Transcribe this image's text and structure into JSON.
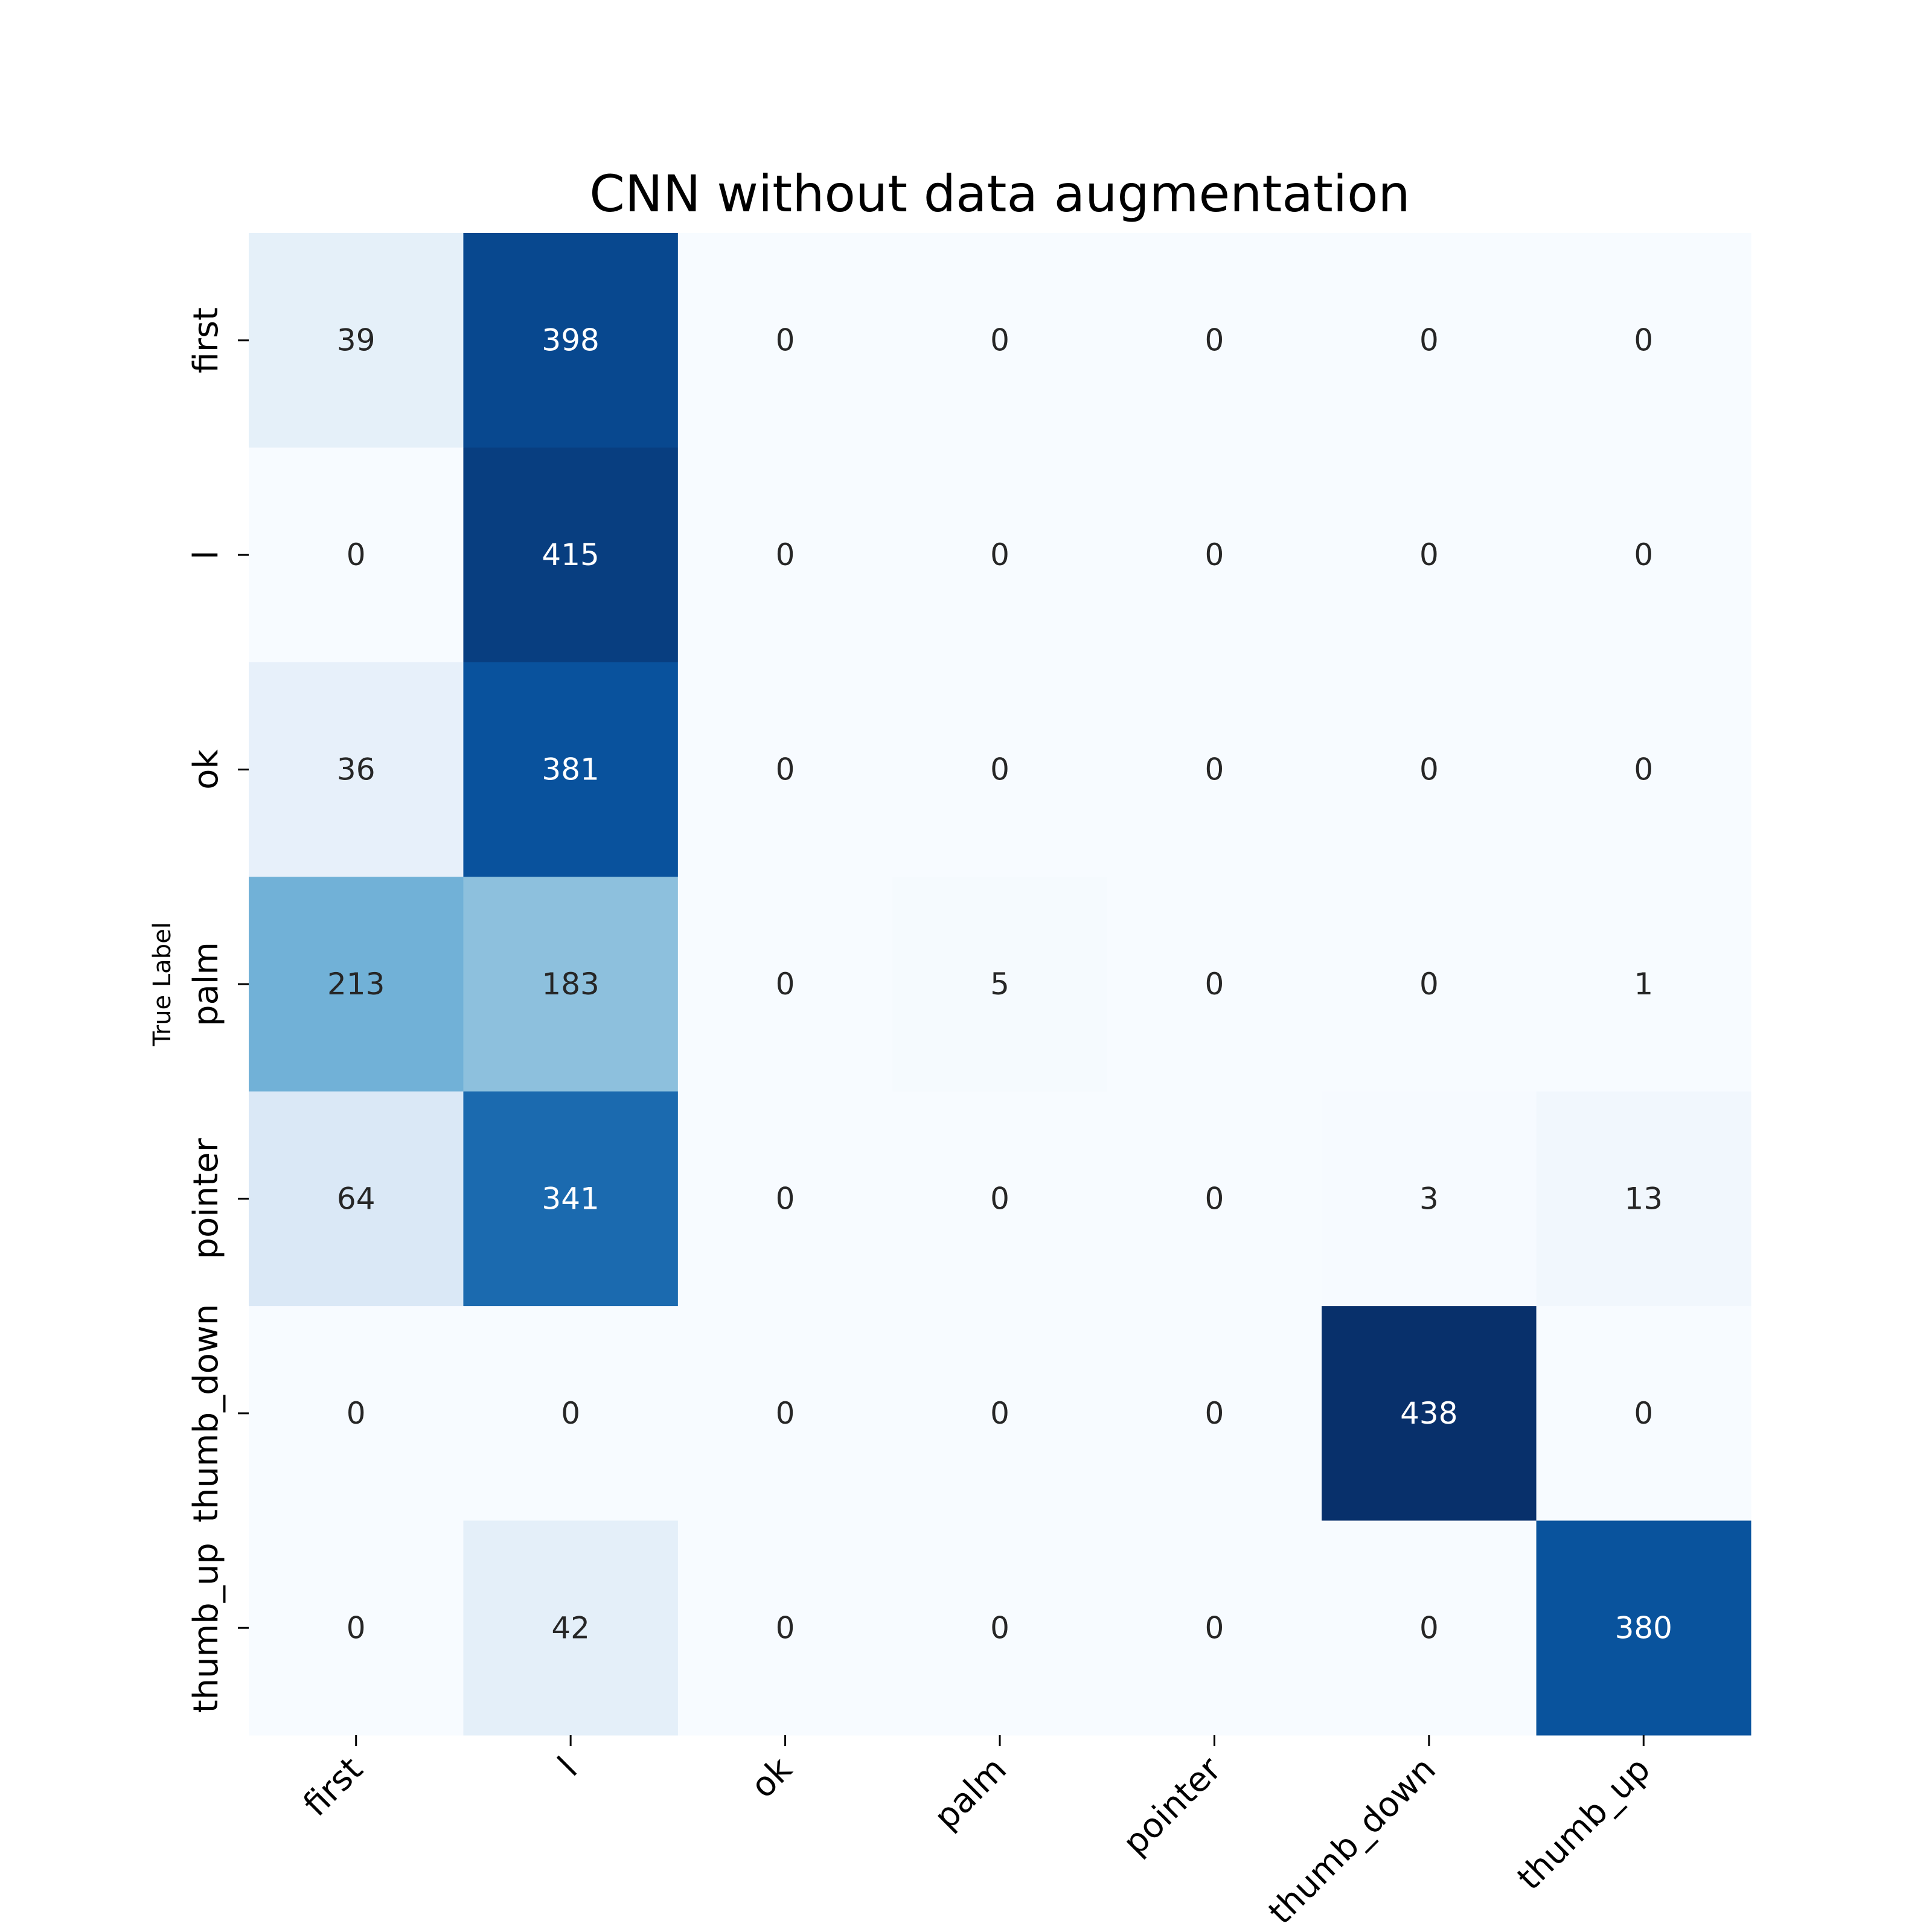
{
  "chart_data": {
    "type": "heatmap",
    "title": "CNN without data augmentation",
    "ylabel": "True Label",
    "xlabel": "",
    "row_labels": [
      "first",
      "l",
      "ok",
      "palm",
      "pointer",
      "thumb_down",
      "thumb_up"
    ],
    "col_labels": [
      "first",
      "l",
      "ok",
      "palm",
      "pointer",
      "thumb_down",
      "thumb_up"
    ],
    "values": [
      [
        39,
        398,
        0,
        0,
        0,
        0,
        0
      ],
      [
        0,
        415,
        0,
        0,
        0,
        0,
        0
      ],
      [
        36,
        381,
        0,
        0,
        0,
        0,
        0
      ],
      [
        213,
        183,
        0,
        5,
        0,
        0,
        1
      ],
      [
        64,
        341,
        0,
        0,
        0,
        3,
        13
      ],
      [
        0,
        0,
        0,
        0,
        0,
        438,
        0
      ],
      [
        0,
        42,
        0,
        0,
        0,
        0,
        380
      ]
    ],
    "colormap": "Blues",
    "vmin": 0,
    "vmax": 438,
    "colorbar": false
  }
}
